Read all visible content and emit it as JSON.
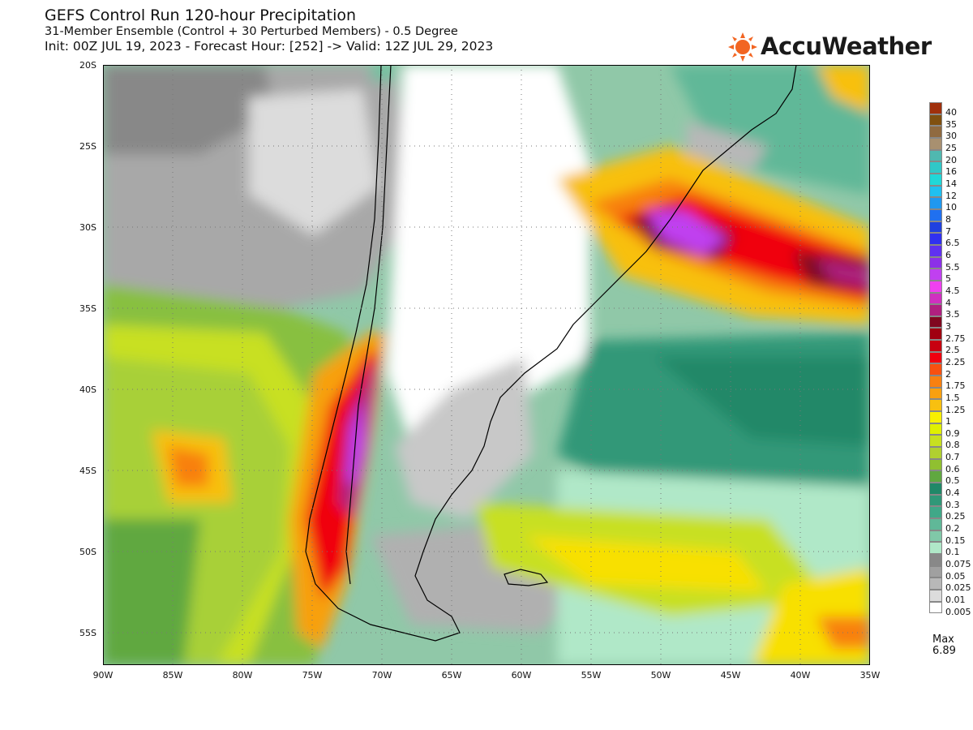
{
  "header": {
    "title": "GEFS Control Run 120-hour Precipitation",
    "subtitle": "31-Member Ensemble (Control + 30 Perturbed Members) - 0.5 Degree",
    "init_line": "Init: 00Z JUL 19, 2023 - Forecast Hour: [252] -> Valid: 12Z JUL 29, 2023"
  },
  "brand": {
    "name": "AccuWeather",
    "icon": "sun-icon",
    "color": "#f26522"
  },
  "axes": {
    "lat_labels": [
      "20S",
      "25S",
      "30S",
      "35S",
      "40S",
      "45S",
      "50S",
      "55S"
    ],
    "lon_labels": [
      "90W",
      "85W",
      "80W",
      "75W",
      "70W",
      "65W",
      "60W",
      "55W",
      "50W",
      "45W",
      "40W",
      "35W"
    ]
  },
  "legend": {
    "levels": [
      "40",
      "35",
      "30",
      "25",
      "20",
      "16",
      "14",
      "12",
      "10",
      "8",
      "7",
      "6.5",
      "6",
      "5.5",
      "5",
      "4.5",
      "4",
      "3.5",
      "3",
      "2.75",
      "2.5",
      "2.25",
      "2",
      "1.75",
      "1.5",
      "1.25",
      "1",
      "0.9",
      "0.8",
      "0.7",
      "0.6",
      "0.5",
      "0.4",
      "0.3",
      "0.25",
      "0.2",
      "0.15",
      "0.1",
      "0.075",
      "0.05",
      "0.025",
      "0.01",
      "0.005"
    ],
    "colors": [
      "#a0300c",
      "#805010",
      "#906a40",
      "#a89070",
      "#50b8b0",
      "#30c8c8",
      "#20d8d8",
      "#20c0f0",
      "#2098f0",
      "#2070f0",
      "#2040e0",
      "#3030f0",
      "#6030f0",
      "#8c30e8",
      "#c040f0",
      "#f040f0",
      "#d030c0",
      "#b02080",
      "#800820",
      "#a00010",
      "#c80010",
      "#f00010",
      "#f85010",
      "#f88010",
      "#f8a010",
      "#f8c010",
      "#f8f000",
      "#e0f000",
      "#c8e020",
      "#b0d030",
      "#90c030",
      "#60a840",
      "#208868",
      "#309878",
      "#40a888",
      "#60b898",
      "#80c8a8",
      "#b0e8c8",
      "#888888",
      "#a0a0a0",
      "#b8b8b8",
      "#dcdcdc",
      "#ffffff"
    ],
    "max_label": "Max",
    "max_value": "6.89"
  }
}
